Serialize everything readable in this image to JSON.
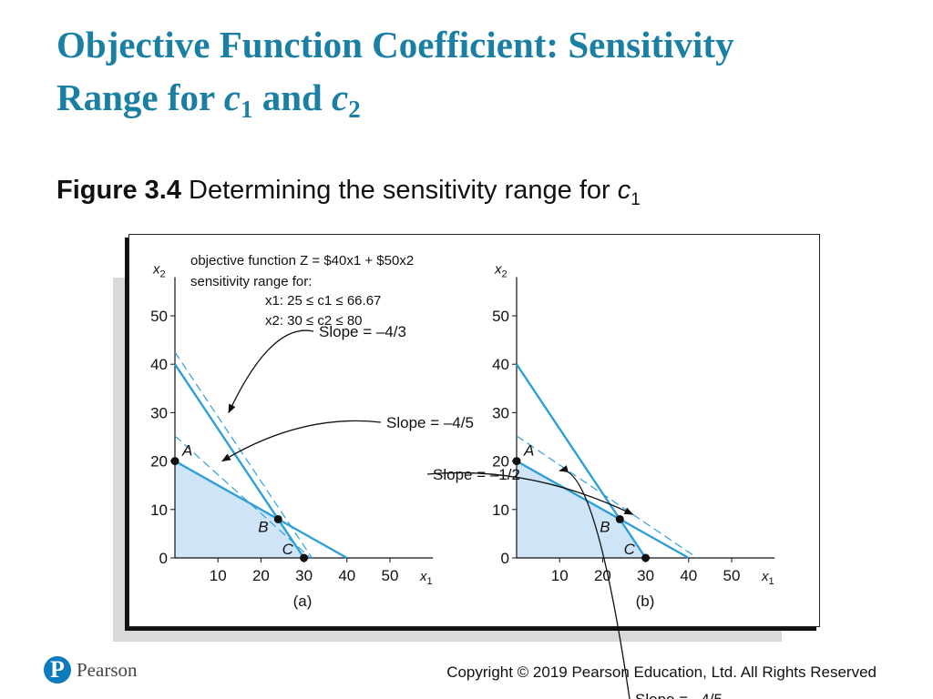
{
  "slide": {
    "title_line1": "Objective Function Coefficient: Sensitivity",
    "title_line2_prefix": "Range for ",
    "title_c": "c",
    "title_sub1": "1",
    "title_and": " and ",
    "title_sub2": "2",
    "caption_bold": "Figure 3.4",
    "caption_text": " Determining the sensitivity range for ",
    "caption_c": "c",
    "caption_sub": "1"
  },
  "annotation": {
    "line1": "objective function  Z = $40x1 + $50x2",
    "line2": "sensitivity range for:",
    "line3": "x1:  25 ≤ c1 ≤ 66.67",
    "line4": "x2:  30 ≤ c2 ≤ 80"
  },
  "footer": {
    "logo_mark": "P",
    "logo_text": "Pearson",
    "copyright": "Copyright © 2019 Pearson Education, Ltd. All Rights Reserved"
  },
  "colors": {
    "title": "#1a7fa3",
    "constraint_line": "#2e9fd8",
    "feasible_fill": "#cfe5f7",
    "axis": "#111111"
  },
  "chart_data": [
    {
      "type": "line",
      "panel_label": "(a)",
      "xlabel": "x1",
      "ylabel": "x2",
      "xlim": [
        0,
        60
      ],
      "ylim": [
        0,
        60
      ],
      "x_ticks": [
        10,
        20,
        30,
        40,
        50
      ],
      "y_ticks": [
        0,
        10,
        20,
        30,
        40,
        50
      ],
      "constraints": [
        {
          "points": [
            [
              0,
              40
            ],
            [
              30,
              0
            ]
          ]
        },
        {
          "points": [
            [
              0,
              20
            ],
            [
              40,
              0
            ]
          ]
        }
      ],
      "dashed_lines": [
        {
          "points": [
            [
              0,
              42.5
            ],
            [
              31.875,
              0
            ]
          ]
        },
        {
          "points": [
            [
              0,
              25.2
            ],
            [
              31.5,
              0
            ]
          ]
        }
      ],
      "feasible_region": [
        [
          0,
          0
        ],
        [
          0,
          20
        ],
        [
          24,
          8
        ],
        [
          30,
          0
        ]
      ],
      "points": [
        {
          "label": "A",
          "x": 0,
          "y": 20
        },
        {
          "label": "B",
          "x": 24,
          "y": 8
        },
        {
          "label": "C",
          "x": 30,
          "y": 0
        }
      ],
      "annotations": [
        {
          "text": "Slope = –4/3",
          "target": [
            12.5,
            30
          ]
        },
        {
          "text": "Slope = –4/5",
          "target": [
            11,
            20
          ]
        }
      ]
    },
    {
      "type": "line",
      "panel_label": "(b)",
      "xlabel": "x1",
      "ylabel": "x2",
      "xlim": [
        0,
        60
      ],
      "ylim": [
        0,
        60
      ],
      "x_ticks": [
        10,
        20,
        30,
        40,
        50
      ],
      "y_ticks": [
        0,
        10,
        20,
        30,
        40,
        50
      ],
      "constraints": [
        {
          "points": [
            [
              0,
              40
            ],
            [
              30,
              0
            ]
          ]
        },
        {
          "points": [
            [
              0,
              20
            ],
            [
              40,
              0
            ]
          ]
        }
      ],
      "dashed_lines": [
        {
          "points": [
            [
              0,
              25.2
            ],
            [
              42,
              0
            ]
          ]
        },
        {
          "points": [
            [
              0,
              20
            ],
            [
              40,
              0
            ]
          ]
        }
      ],
      "feasible_region": [
        [
          0,
          0
        ],
        [
          0,
          20
        ],
        [
          24,
          8
        ],
        [
          30,
          0
        ]
      ],
      "points": [
        {
          "label": "A",
          "x": 0,
          "y": 20
        },
        {
          "label": "B",
          "x": 24,
          "y": 8
        },
        {
          "label": "C",
          "x": 30,
          "y": 0
        }
      ],
      "annotations": [
        {
          "text": "Slope = –4/5",
          "target": [
            10,
            18
          ]
        },
        {
          "text": "Slope = –1/2",
          "target": [
            27,
            9
          ]
        }
      ]
    }
  ]
}
